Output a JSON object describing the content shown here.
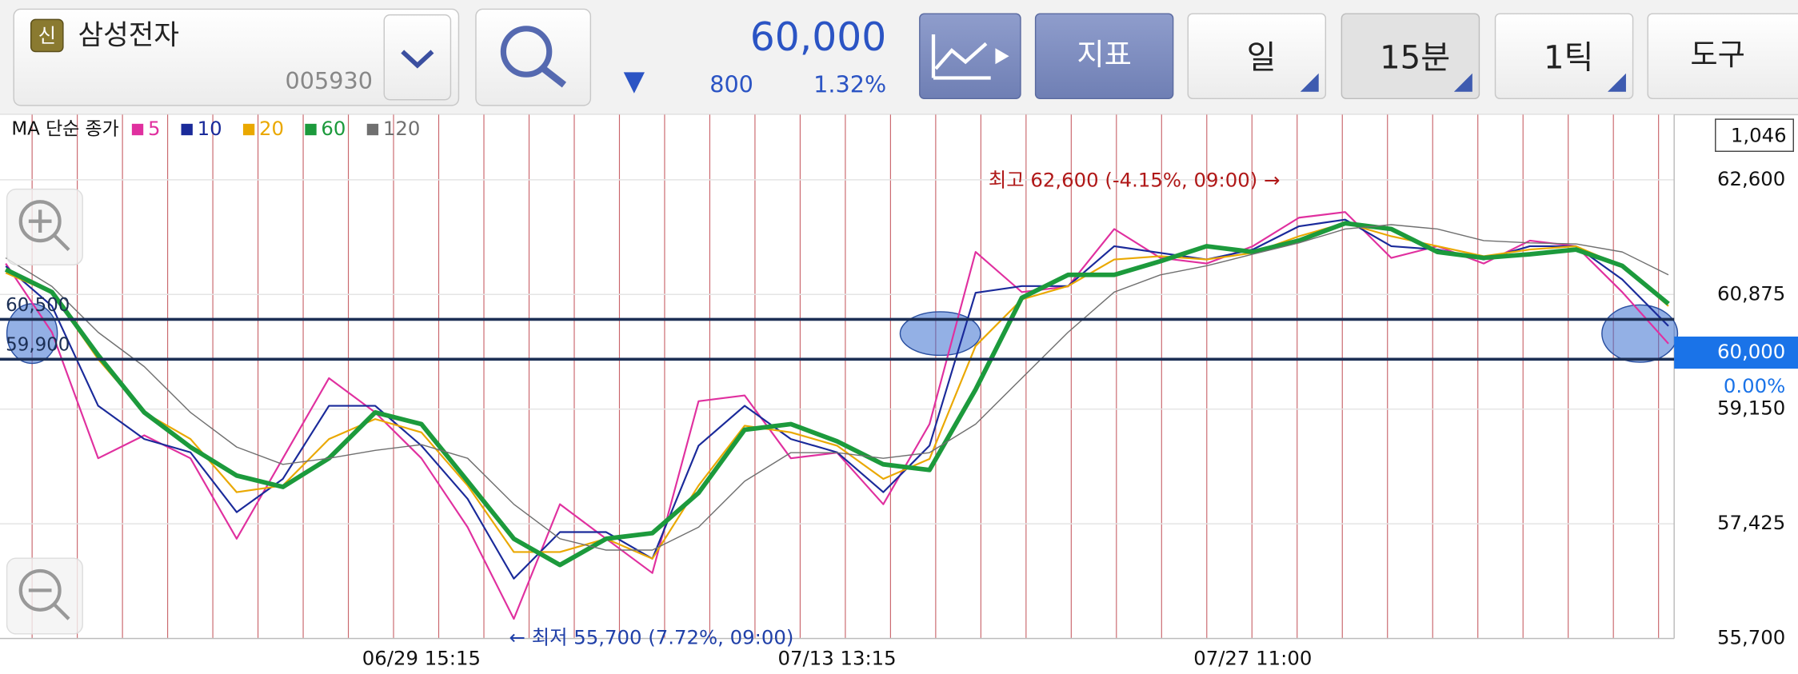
{
  "header": {
    "badge": "신",
    "name": "삼성전자",
    "code": "005930",
    "direction": "▼",
    "price": "60,000",
    "change": "800",
    "change_pct": "1.32%",
    "buttons": [
      "지표",
      "일",
      "15분",
      "1틱",
      "도구"
    ]
  },
  "chart_data": {
    "type": "line",
    "legend_title": "MA 단순 종가",
    "categories": [
      null,
      null,
      null,
      null,
      null,
      null,
      null,
      null,
      null,
      "06/29 15:15",
      null,
      null,
      null,
      null,
      null,
      null,
      null,
      null,
      "07/13 13:15",
      null,
      null,
      null,
      null,
      null,
      null,
      null,
      null,
      "07/27 11:00",
      null,
      null,
      null,
      null,
      null,
      null,
      null,
      null,
      null
    ],
    "series": [
      {
        "name": "5",
        "color": "#e0309f",
        "values": [
          61340,
          60305,
          58410,
          58755,
          58410,
          57200,
          58410,
          59615,
          59100,
          58410,
          57375,
          55995,
          57720,
          57200,
          56685,
          59270,
          59355,
          58410,
          58495,
          57720,
          58925,
          61515,
          60910,
          60995,
          61860,
          61425,
          61340,
          61600,
          62030,
          62115,
          61425,
          61600,
          61340,
          61685,
          61600,
          60910,
          60135
        ]
      },
      {
        "name": "10",
        "color": "#1a2a9a",
        "values": [
          61300,
          60700,
          59200,
          58700,
          58500,
          57600,
          58100,
          59200,
          59200,
          58600,
          57800,
          56600,
          57300,
          57300,
          56900,
          58600,
          59200,
          58700,
          58500,
          57900,
          58600,
          60900,
          61000,
          61000,
          61600,
          61500,
          61400,
          61550,
          61900,
          62000,
          61600,
          61550,
          61400,
          61600,
          61600,
          61100,
          60400
        ]
      },
      {
        "name": "20",
        "color": "#eaa800",
        "values": [
          61200,
          60900,
          59900,
          59100,
          58700,
          57900,
          58000,
          58700,
          59000,
          58800,
          58000,
          57000,
          57000,
          57200,
          56900,
          58000,
          58900,
          58800,
          58600,
          58100,
          58400,
          60100,
          60800,
          61000,
          61400,
          61450,
          61400,
          61500,
          61750,
          61950,
          61750,
          61600,
          61450,
          61550,
          61600,
          61300,
          60700
        ]
      },
      {
        "name": "60",
        "color": "#1c9a3c",
        "values": [
          61250,
          60910,
          59960,
          59100,
          58580,
          58150,
          57980,
          58410,
          59100,
          58925,
          58065,
          57200,
          56805,
          57200,
          57285,
          57890,
          58840,
          58925,
          58665,
          58320,
          58235,
          59445,
          60825,
          61170,
          61170,
          61375,
          61600,
          61515,
          61685,
          61945,
          61860,
          61515,
          61425,
          61480,
          61550,
          61305,
          60735
        ]
      },
      {
        "name": "120",
        "color": "#707070",
        "values": [
          61425,
          60995,
          60305,
          59790,
          59100,
          58580,
          58320,
          58410,
          58530,
          58615,
          58410,
          57720,
          57200,
          57030,
          57030,
          57375,
          58065,
          58495,
          58495,
          58410,
          58495,
          58925,
          59615,
          60305,
          60910,
          61170,
          61305,
          61480,
          61650,
          61860,
          61925,
          61860,
          61685,
          61650,
          61635,
          61515,
          61170
        ]
      }
    ],
    "ylim": [
      55700,
      63580
    ],
    "yticks": [
      {
        "value": 62600,
        "label": "62,600"
      },
      {
        "value": 60875,
        "label": "60,875"
      },
      {
        "value": 59150,
        "label": "59,150"
      },
      {
        "value": 57425,
        "label": "57,425"
      },
      {
        "value": 55700,
        "label": "55,700"
      }
    ],
    "hlines": [
      {
        "value": 60500,
        "label": "60,500"
      },
      {
        "value": 59900,
        "label": "59,900"
      }
    ],
    "current": {
      "value": 60000,
      "label": "60,000",
      "change": "0.00%"
    },
    "volume_label": "1,046",
    "annotations": [
      "최고 62,600 (-4.15%, 09:00) →",
      "← 최저 55,700 (7.72%, 09:00)"
    ],
    "grid": true
  }
}
